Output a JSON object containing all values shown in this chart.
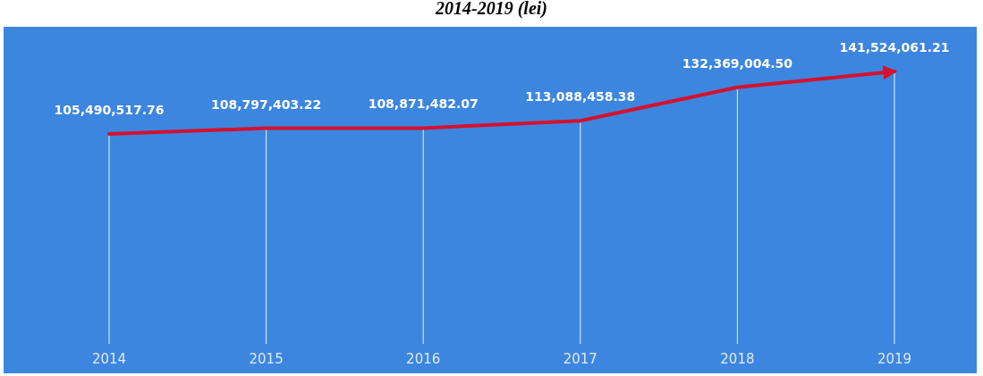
{
  "chart_data": {
    "type": "line",
    "title": "2014-2019 (lei)",
    "categories": [
      "2014",
      "2015",
      "2016",
      "2017",
      "2018",
      "2019"
    ],
    "series": [
      {
        "color": "#d4112e",
        "values": [
          105490517.76,
          108797403.22,
          108871482.07,
          113088458.38,
          132369004.5,
          141524061.21
        ],
        "value_labels": [
          "105,490,517.76",
          "108,797,403.22",
          "108,871,482.07",
          "113,088,458.38",
          "132,369,004.50",
          "141,524,061.21"
        ]
      }
    ],
    "grid": "x",
    "marker": "none",
    "line_style": "solid"
  }
}
